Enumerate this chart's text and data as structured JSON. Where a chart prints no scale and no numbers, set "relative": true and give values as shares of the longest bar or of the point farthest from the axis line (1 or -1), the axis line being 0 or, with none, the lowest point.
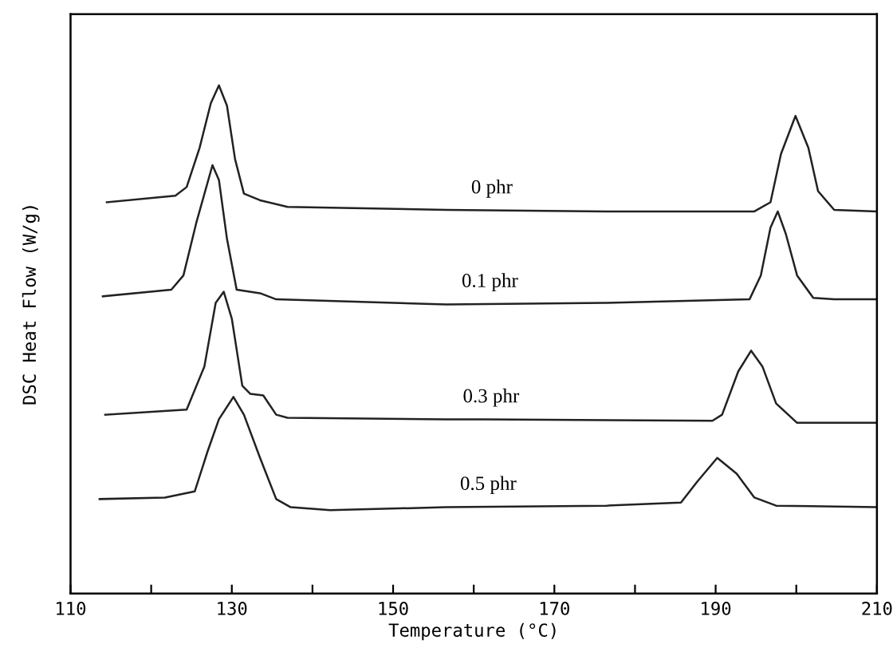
{
  "chart_data": {
    "type": "line",
    "relative": true,
    "xlabel": "Temperature (°C)",
    "ylabel": "DSC Heat Flow (W/g)",
    "xlim": [
      110,
      210
    ],
    "xticks": [
      110,
      {
        "value": 120,
        "label": null
      },
      130,
      {
        "value": 140,
        "label": null
      },
      150,
      {
        "value": 160,
        "label": null
      },
      170,
      {
        "value": 180,
        "label": null
      },
      190,
      {
        "value": 200,
        "label": null
      },
      210
    ],
    "tick_labels": "x",
    "grid": false,
    "marker": "none",
    "line_style": "solid",
    "series": [
      {
        "name": "0 phr",
        "color": "#222222",
        "x": [
          114.5,
          123.0,
          124.4,
          126.0,
          127.4,
          128.4,
          129.4,
          130.4,
          131.5,
          133.5,
          136.9,
          156.6,
          176.4,
          194.8,
          196.8,
          198.1,
          199.9,
          201.5,
          202.7,
          204.7,
          210
        ],
        "values": [
          0.77,
          0.783,
          0.8,
          0.877,
          0.965,
          1.0,
          0.96,
          0.855,
          0.787,
          0.774,
          0.761,
          0.755,
          0.752,
          0.752,
          0.77,
          0.865,
          0.94,
          0.877,
          0.792,
          0.755,
          0.752
        ]
      },
      {
        "name": "0.1 phr",
        "color": "#222222",
        "x": [
          114.0,
          122.5,
          124.0,
          125.6,
          127.6,
          128.4,
          129.4,
          130.6,
          133.5,
          135.5,
          156.6,
          176.4,
          194.2,
          195.6,
          196.8,
          197.7,
          198.7,
          200.1,
          202.1,
          204.7,
          210
        ],
        "values": [
          0.585,
          0.598,
          0.626,
          0.73,
          0.843,
          0.814,
          0.698,
          0.598,
          0.591,
          0.579,
          0.569,
          0.572,
          0.579,
          0.626,
          0.72,
          0.752,
          0.708,
          0.626,
          0.582,
          0.579,
          0.579
        ]
      },
      {
        "name": "0.3 phr",
        "color": "#222222",
        "x": [
          114.3,
          124.4,
          126.6,
          128.0,
          129.0,
          130.0,
          131.3,
          132.3,
          133.9,
          135.5,
          136.9,
          156.6,
          161.2,
          189.6,
          190.8,
          192.8,
          194.4,
          195.8,
          197.5,
          200.1,
          210
        ],
        "values": [
          0.352,
          0.362,
          0.447,
          0.572,
          0.594,
          0.541,
          0.409,
          0.393,
          0.39,
          0.352,
          0.346,
          0.343,
          0.343,
          0.34,
          0.352,
          0.437,
          0.478,
          0.447,
          0.374,
          0.336,
          0.336
        ]
      },
      {
        "name": "0.5 phr",
        "color": "#222222",
        "x": [
          113.6,
          121.7,
          125.4,
          127.0,
          128.4,
          130.2,
          131.5,
          133.5,
          135.5,
          137.3,
          142.2,
          156.6,
          176.4,
          185.7,
          187.7,
          190.2,
          192.6,
          194.8,
          197.5,
          210
        ],
        "values": [
          0.186,
          0.189,
          0.201,
          0.28,
          0.343,
          0.387,
          0.352,
          0.267,
          0.186,
          0.17,
          0.164,
          0.17,
          0.173,
          0.179,
          0.22,
          0.267,
          0.236,
          0.189,
          0.173,
          0.17
        ]
      }
    ]
  }
}
